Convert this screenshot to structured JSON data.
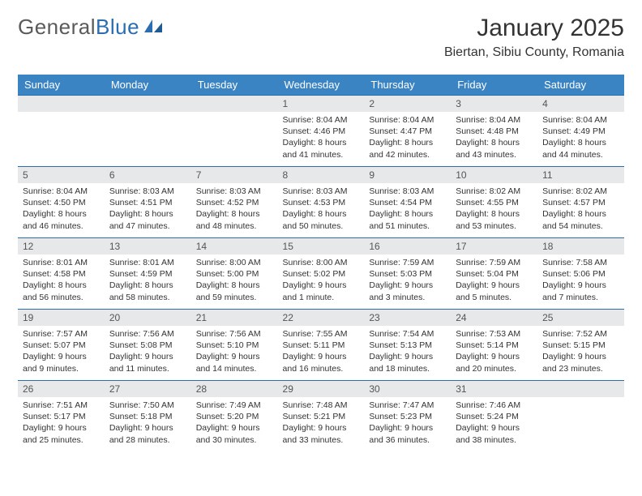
{
  "brand": {
    "part1": "General",
    "part2": "Blue"
  },
  "title": "January 2025",
  "location": "Biertan, Sibiu County, Romania",
  "colors": {
    "header_bg": "#3b84c4",
    "header_text": "#ffffff",
    "daynum_bg": "#e7e8ea",
    "rule": "#2a6db0",
    "body_text": "#333333",
    "logo_gray": "#5a5a5a",
    "logo_blue": "#2a6db0"
  },
  "day_headers": [
    "Sunday",
    "Monday",
    "Tuesday",
    "Wednesday",
    "Thursday",
    "Friday",
    "Saturday"
  ],
  "weeks": [
    [
      null,
      null,
      null,
      {
        "n": "1",
        "sunrise": "8:04 AM",
        "sunset": "4:46 PM",
        "dl": "8 hours and 41 minutes."
      },
      {
        "n": "2",
        "sunrise": "8:04 AM",
        "sunset": "4:47 PM",
        "dl": "8 hours and 42 minutes."
      },
      {
        "n": "3",
        "sunrise": "8:04 AM",
        "sunset": "4:48 PM",
        "dl": "8 hours and 43 minutes."
      },
      {
        "n": "4",
        "sunrise": "8:04 AM",
        "sunset": "4:49 PM",
        "dl": "8 hours and 44 minutes."
      }
    ],
    [
      {
        "n": "5",
        "sunrise": "8:04 AM",
        "sunset": "4:50 PM",
        "dl": "8 hours and 46 minutes."
      },
      {
        "n": "6",
        "sunrise": "8:03 AM",
        "sunset": "4:51 PM",
        "dl": "8 hours and 47 minutes."
      },
      {
        "n": "7",
        "sunrise": "8:03 AM",
        "sunset": "4:52 PM",
        "dl": "8 hours and 48 minutes."
      },
      {
        "n": "8",
        "sunrise": "8:03 AM",
        "sunset": "4:53 PM",
        "dl": "8 hours and 50 minutes."
      },
      {
        "n": "9",
        "sunrise": "8:03 AM",
        "sunset": "4:54 PM",
        "dl": "8 hours and 51 minutes."
      },
      {
        "n": "10",
        "sunrise": "8:02 AM",
        "sunset": "4:55 PM",
        "dl": "8 hours and 53 minutes."
      },
      {
        "n": "11",
        "sunrise": "8:02 AM",
        "sunset": "4:57 PM",
        "dl": "8 hours and 54 minutes."
      }
    ],
    [
      {
        "n": "12",
        "sunrise": "8:01 AM",
        "sunset": "4:58 PM",
        "dl": "8 hours and 56 minutes."
      },
      {
        "n": "13",
        "sunrise": "8:01 AM",
        "sunset": "4:59 PM",
        "dl": "8 hours and 58 minutes."
      },
      {
        "n": "14",
        "sunrise": "8:00 AM",
        "sunset": "5:00 PM",
        "dl": "8 hours and 59 minutes."
      },
      {
        "n": "15",
        "sunrise": "8:00 AM",
        "sunset": "5:02 PM",
        "dl": "9 hours and 1 minute."
      },
      {
        "n": "16",
        "sunrise": "7:59 AM",
        "sunset": "5:03 PM",
        "dl": "9 hours and 3 minutes."
      },
      {
        "n": "17",
        "sunrise": "7:59 AM",
        "sunset": "5:04 PM",
        "dl": "9 hours and 5 minutes."
      },
      {
        "n": "18",
        "sunrise": "7:58 AM",
        "sunset": "5:06 PM",
        "dl": "9 hours and 7 minutes."
      }
    ],
    [
      {
        "n": "19",
        "sunrise": "7:57 AM",
        "sunset": "5:07 PM",
        "dl": "9 hours and 9 minutes."
      },
      {
        "n": "20",
        "sunrise": "7:56 AM",
        "sunset": "5:08 PM",
        "dl": "9 hours and 11 minutes."
      },
      {
        "n": "21",
        "sunrise": "7:56 AM",
        "sunset": "5:10 PM",
        "dl": "9 hours and 14 minutes."
      },
      {
        "n": "22",
        "sunrise": "7:55 AM",
        "sunset": "5:11 PM",
        "dl": "9 hours and 16 minutes."
      },
      {
        "n": "23",
        "sunrise": "7:54 AM",
        "sunset": "5:13 PM",
        "dl": "9 hours and 18 minutes."
      },
      {
        "n": "24",
        "sunrise": "7:53 AM",
        "sunset": "5:14 PM",
        "dl": "9 hours and 20 minutes."
      },
      {
        "n": "25",
        "sunrise": "7:52 AM",
        "sunset": "5:15 PM",
        "dl": "9 hours and 23 minutes."
      }
    ],
    [
      {
        "n": "26",
        "sunrise": "7:51 AM",
        "sunset": "5:17 PM",
        "dl": "9 hours and 25 minutes."
      },
      {
        "n": "27",
        "sunrise": "7:50 AM",
        "sunset": "5:18 PM",
        "dl": "9 hours and 28 minutes."
      },
      {
        "n": "28",
        "sunrise": "7:49 AM",
        "sunset": "5:20 PM",
        "dl": "9 hours and 30 minutes."
      },
      {
        "n": "29",
        "sunrise": "7:48 AM",
        "sunset": "5:21 PM",
        "dl": "9 hours and 33 minutes."
      },
      {
        "n": "30",
        "sunrise": "7:47 AM",
        "sunset": "5:23 PM",
        "dl": "9 hours and 36 minutes."
      },
      {
        "n": "31",
        "sunrise": "7:46 AM",
        "sunset": "5:24 PM",
        "dl": "9 hours and 38 minutes."
      },
      null
    ]
  ],
  "labels": {
    "sunrise": "Sunrise: ",
    "sunset": "Sunset: ",
    "daylight": "Daylight: "
  }
}
